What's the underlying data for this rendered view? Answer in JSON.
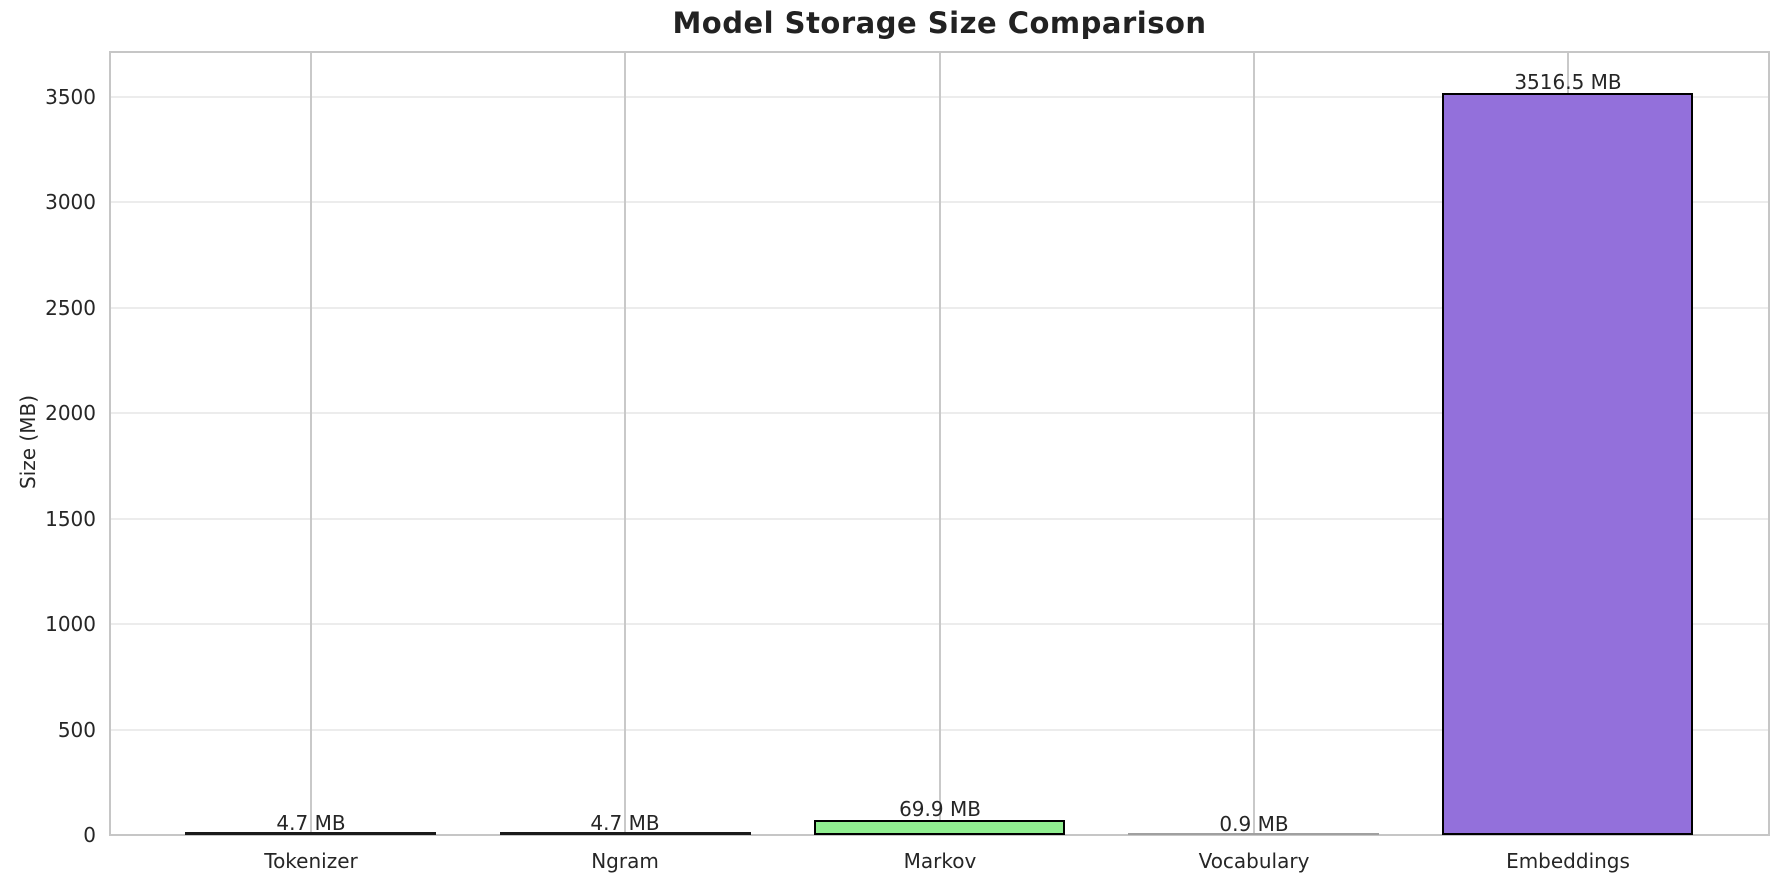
{
  "figure": {
    "background": "#ffffff",
    "text_color": "#262626",
    "spine_color": "#c6c6c6",
    "hgrid_color": "#ececec",
    "vgrid_color": "#c9c9c9"
  },
  "chart_data": {
    "type": "bar",
    "title": "Model Storage Size Comparison",
    "ylabel": "Size (MB)",
    "xlabel": "",
    "categories": [
      "Tokenizer",
      "Ngram",
      "Markov",
      "Vocabulary",
      "Embeddings"
    ],
    "values": [
      4.7,
      4.7,
      69.9,
      0.9,
      3516.5
    ],
    "bar_labels": [
      "4.7 MB",
      "4.7 MB",
      "69.9 MB",
      "0.9 MB",
      "3516.5 MB"
    ],
    "bar_colors": [
      "#87ceeb",
      "#f08080",
      "#90ee90",
      "#ffd700",
      "#9370db"
    ],
    "bar_edge_color": "#000000",
    "yticks": [
      0,
      500,
      1000,
      1500,
      2000,
      2500,
      3000,
      3500
    ],
    "ylim": [
      0,
      3711
    ],
    "grid": true,
    "legend_position": null
  }
}
